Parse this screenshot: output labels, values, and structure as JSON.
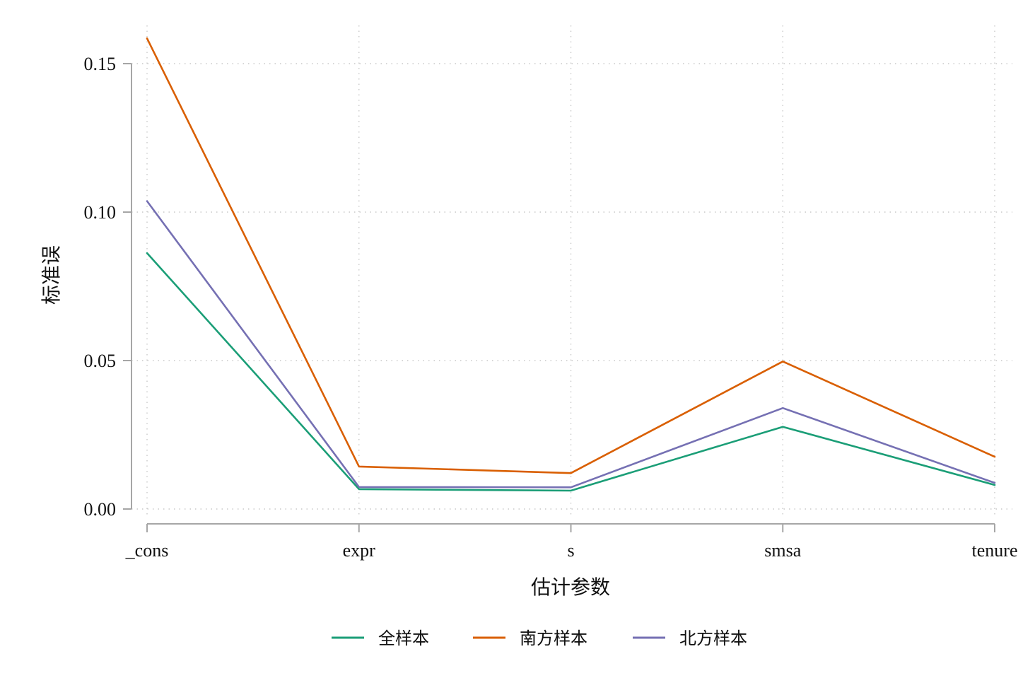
{
  "chart_data": {
    "type": "line",
    "xlabel": "估计参数",
    "ylabel": "标准误",
    "categories": [
      "_cons",
      "expr",
      "s",
      "smsa",
      "tenure"
    ],
    "ylim": [
      0,
      0.15
    ],
    "yticks": [
      0.0,
      0.05,
      0.1,
      0.15
    ],
    "ytick_labels": [
      "0.00",
      "0.05",
      "0.10",
      "0.15"
    ],
    "grid": true,
    "legend_position": "bottom",
    "series": [
      {
        "name": "全样本",
        "color": "#1b9e77",
        "values": [
          0.0862,
          0.0067,
          0.0062,
          0.0277,
          0.0081
        ]
      },
      {
        "name": "南方样本",
        "color": "#d95f02",
        "values": [
          0.1585,
          0.0143,
          0.0121,
          0.0497,
          0.0176
        ]
      },
      {
        "name": "北方样本",
        "color": "#7570b3",
        "values": [
          0.1037,
          0.0074,
          0.0073,
          0.034,
          0.0088
        ]
      }
    ]
  }
}
